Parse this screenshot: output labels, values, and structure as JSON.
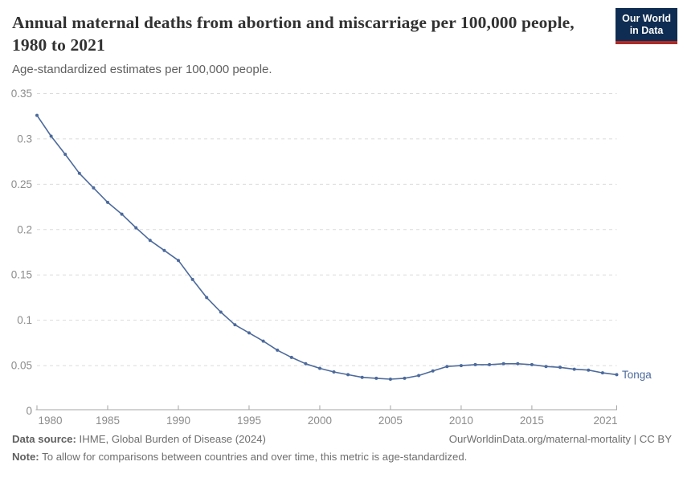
{
  "header": {
    "title": "Annual maternal deaths from abortion and miscarriage per 100,000 people, 1980 to 2021",
    "subtitle": "Age-standardized estimates per 100,000 people."
  },
  "logo": {
    "line1": "Our World",
    "line2": "in Data"
  },
  "chart_data": {
    "type": "line",
    "title": "Annual maternal deaths from abortion and miscarriage per 100,000 people, 1980 to 2021",
    "subtitle": "Age-standardized estimates per 100,000 people.",
    "x": [
      1980,
      1981,
      1982,
      1983,
      1984,
      1985,
      1986,
      1987,
      1988,
      1989,
      1990,
      1991,
      1992,
      1993,
      1994,
      1995,
      1996,
      1997,
      1998,
      1999,
      2000,
      2001,
      2002,
      2003,
      2004,
      2005,
      2006,
      2007,
      2008,
      2009,
      2010,
      2011,
      2012,
      2013,
      2014,
      2015,
      2016,
      2017,
      2018,
      2019,
      2020,
      2021
    ],
    "series": [
      {
        "name": "Tonga",
        "color": "#4C6A9C",
        "values": [
          0.326,
          0.303,
          0.283,
          0.262,
          0.246,
          0.23,
          0.217,
          0.202,
          0.188,
          0.177,
          0.166,
          0.145,
          0.125,
          0.109,
          0.095,
          0.086,
          0.077,
          0.067,
          0.059,
          0.052,
          0.047,
          0.043,
          0.04,
          0.037,
          0.036,
          0.035,
          0.036,
          0.039,
          0.044,
          0.049,
          0.05,
          0.051,
          0.051,
          0.052,
          0.052,
          0.051,
          0.049,
          0.048,
          0.046,
          0.045,
          0.042,
          0.04
        ]
      }
    ],
    "xlabel": "",
    "ylabel": "",
    "xlim": [
      1980,
      2021
    ],
    "ylim": [
      0,
      0.35
    ],
    "y_ticks": [
      0,
      0.05,
      0.1,
      0.15,
      0.2,
      0.25,
      0.3,
      0.35
    ],
    "y_tick_labels": [
      "0",
      "0.05",
      "0.1",
      "0.15",
      "0.2",
      "0.25",
      "0.3",
      "0.35"
    ],
    "x_ticks": [
      1980,
      1985,
      1990,
      1995,
      2000,
      2005,
      2010,
      2015,
      2021
    ],
    "grid": "horizontal dashed",
    "legend": "end-of-line label",
    "end_label": "Tonga"
  },
  "footer": {
    "source_label": "Data source:",
    "source_text": " IHME, Global Burden of Disease (2024)",
    "credit": "OurWorldinData.org/maternal-mortality | CC BY",
    "note_label": "Note:",
    "note_text": " To allow for comparisons between countries and over time, this metric is age-standardized."
  },
  "colors": {
    "line": "#4C6A9C",
    "grid": "#DBDBDB",
    "axis": "#A5A5A5",
    "tick_label": "#8C8C8C",
    "logo_bg": "#0F2D52",
    "logo_bar": "#AF2B26"
  }
}
